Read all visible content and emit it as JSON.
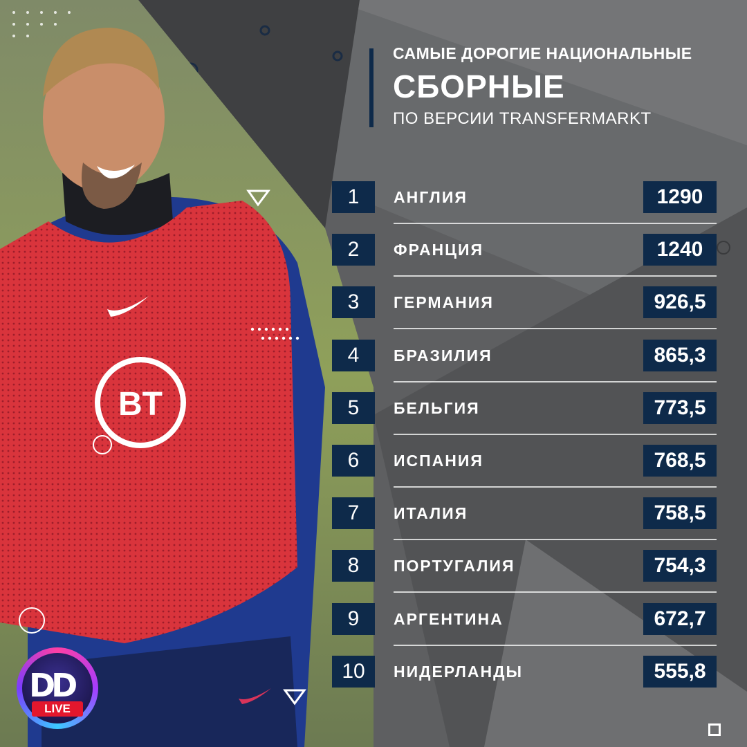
{
  "title": {
    "line1": "САМЫЕ ДОРОГИЕ НАЦИОНАЛЬНЫЕ",
    "line2": "СБОРНЫЕ",
    "line3": "ПО ВЕРСИИ TRANSFERMARKT"
  },
  "ranking": [
    {
      "rank": "1",
      "team": "АНГЛИЯ",
      "value": "1290"
    },
    {
      "rank": "2",
      "team": "ФРАНЦИЯ",
      "value": "1240"
    },
    {
      "rank": "3",
      "team": "ГЕРМАНИЯ",
      "value": "926,5"
    },
    {
      "rank": "4",
      "team": "БРАЗИЛИЯ",
      "value": "865,3"
    },
    {
      "rank": "5",
      "team": "БЕЛЬГИЯ",
      "value": "773,5"
    },
    {
      "rank": "6",
      "team": "ИСПАНИЯ",
      "value": "768,5"
    },
    {
      "rank": "7",
      "team": "ИТАЛИЯ",
      "value": "758,5"
    },
    {
      "rank": "8",
      "team": "ПОРТУГАЛИЯ",
      "value": "754,3"
    },
    {
      "rank": "9",
      "team": "АРГЕНТИНА",
      "value": "672,7"
    },
    {
      "rank": "10",
      "team": "НИДЕРЛАНДЫ",
      "value": "555,8"
    }
  ],
  "photo": {
    "bib_logo": "BT"
  },
  "logo": {
    "mark": "DD",
    "badge": "LIVE"
  },
  "colors": {
    "background": "#5e5f61",
    "navy_accent": "#0e2a4a",
    "bib_red": "#d9343c",
    "live_red": "#e3172d"
  },
  "icons": [
    "triangle-outline-icon",
    "circle-outline-icon",
    "dots-pattern-icon",
    "square-outline-icon"
  ]
}
